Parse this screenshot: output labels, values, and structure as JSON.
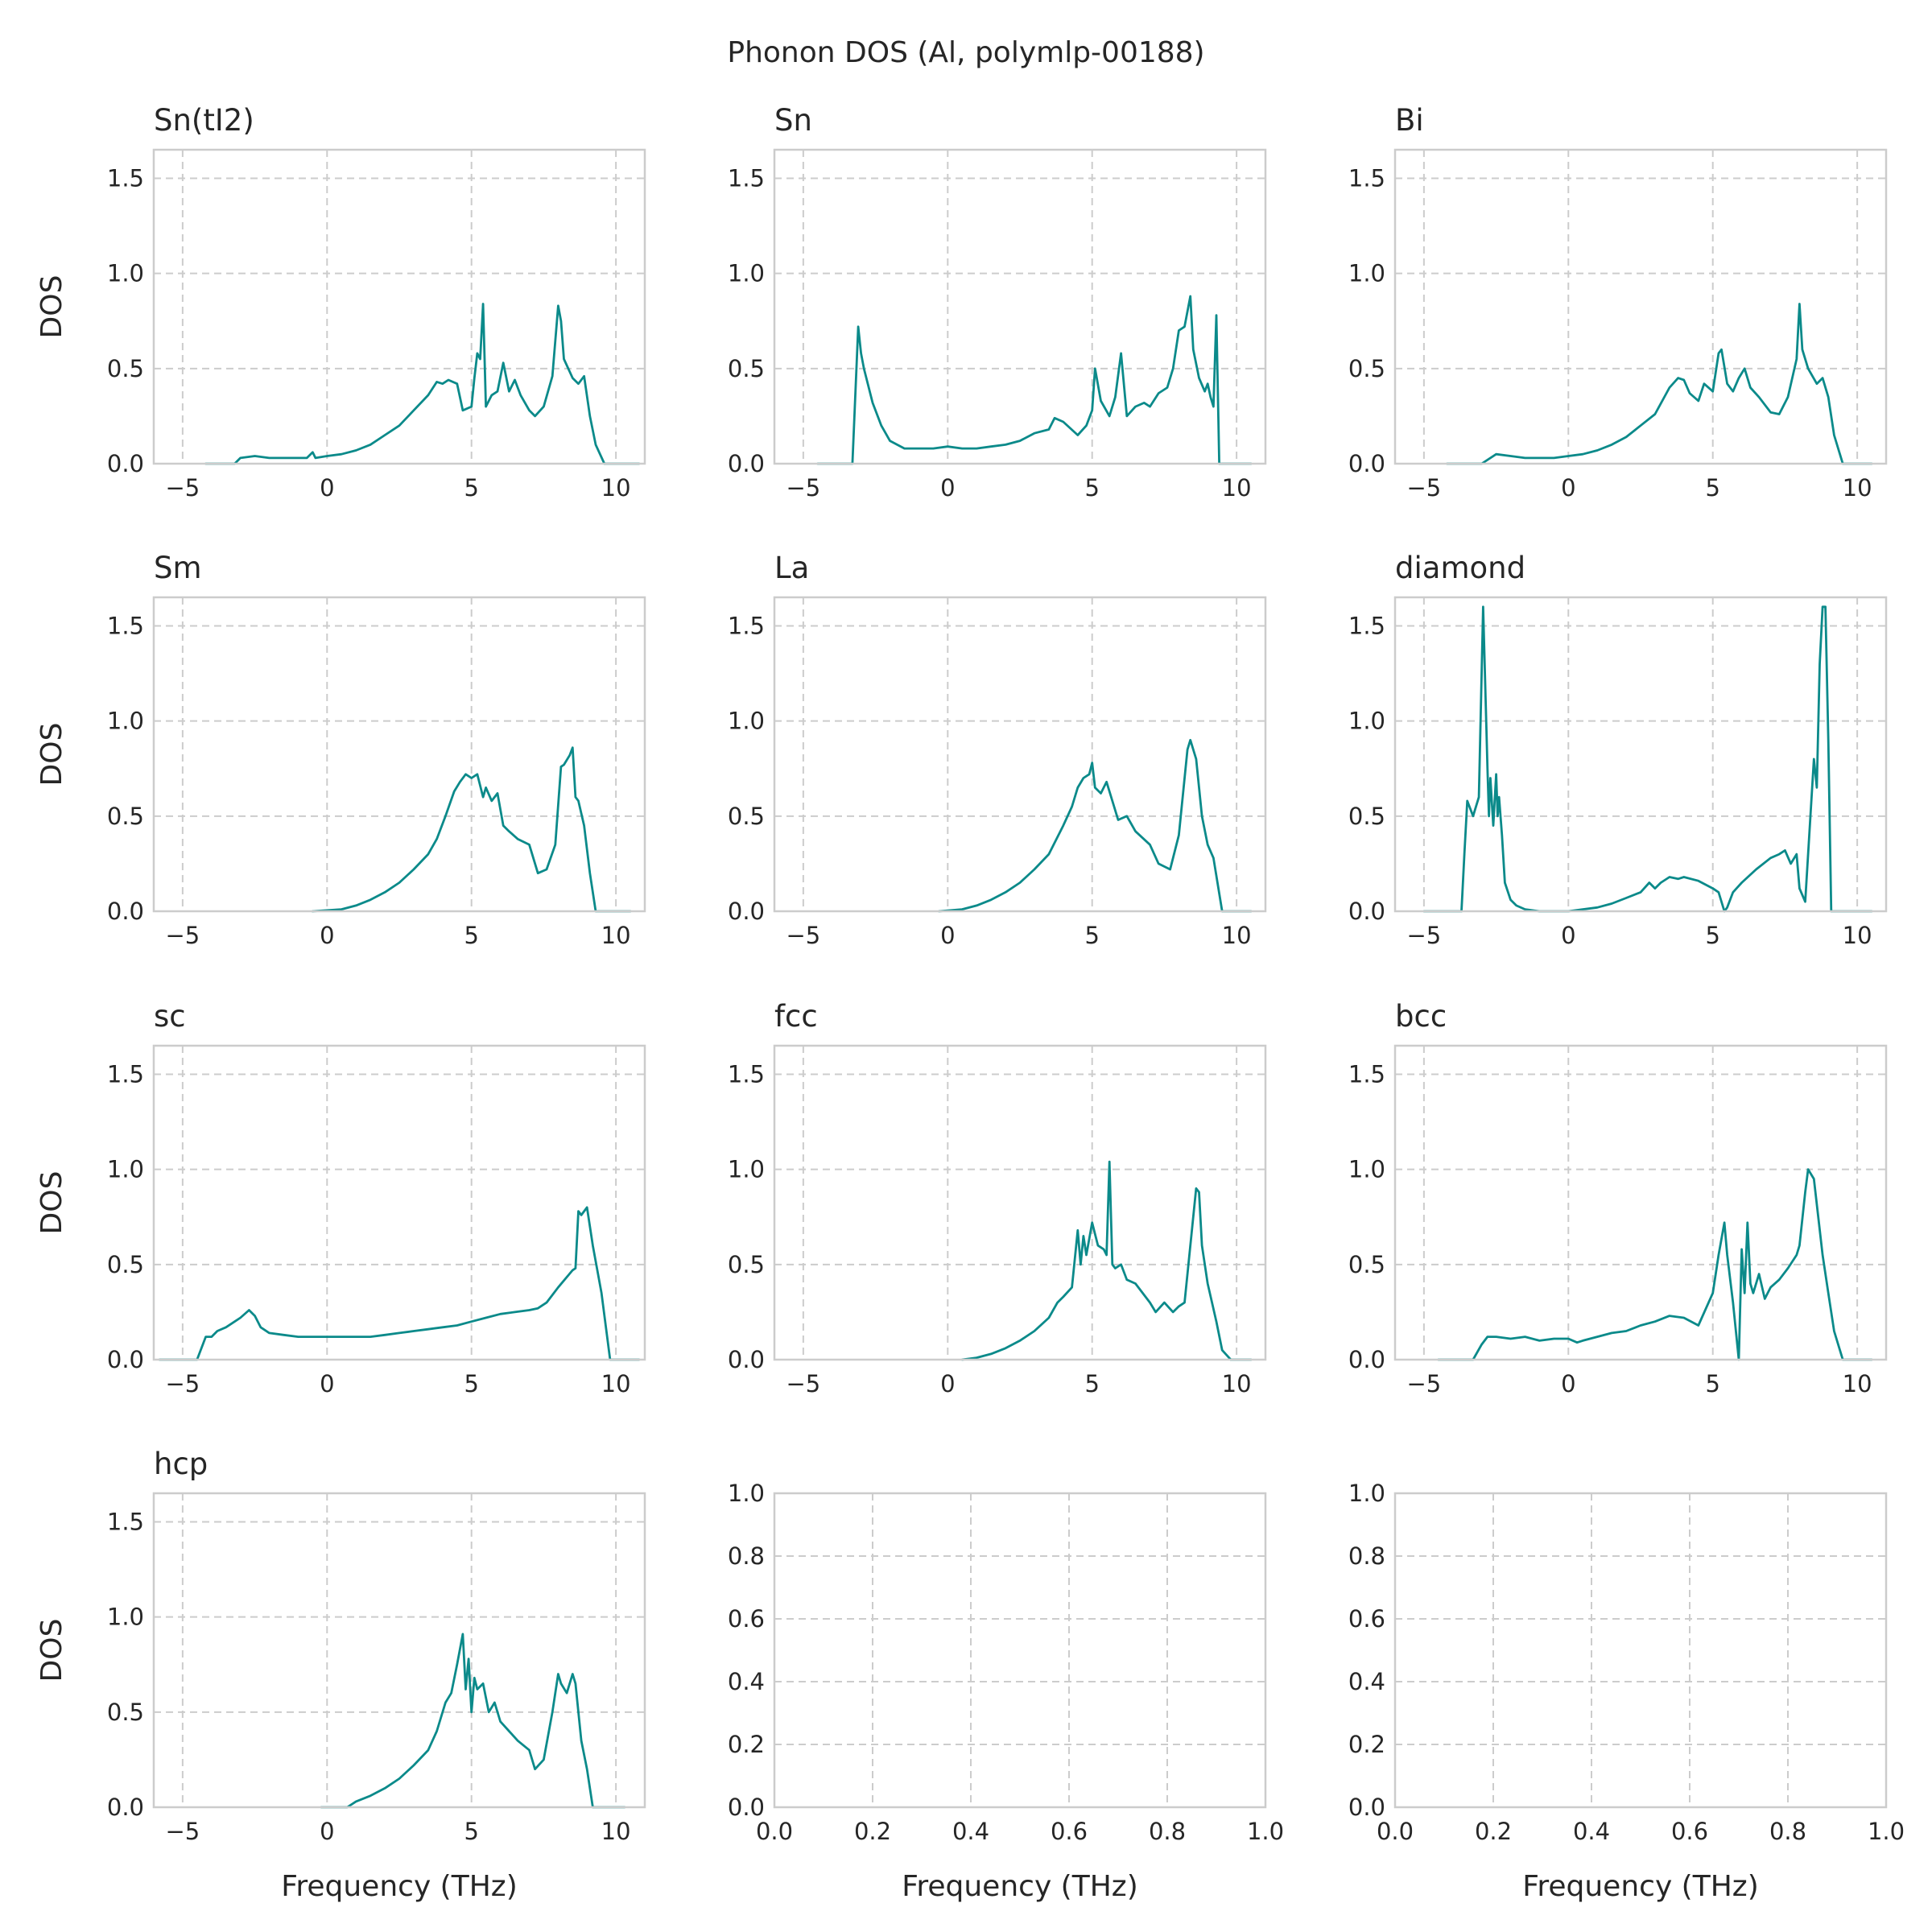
{
  "suptitle": "Phonon DOS (Al, polymlp-00188)",
  "colors": {
    "line": "#0b8a8a",
    "grid": "#cccccc",
    "frame": "#cccccc",
    "text": "#262626"
  },
  "chart_data": [
    {
      "type": "line",
      "title": "Sn(tI2)",
      "xlabel": "",
      "ylabel": "DOS",
      "xlim": [
        -6,
        11
      ],
      "ylim": [
        0,
        1.65
      ],
      "xticks": [
        -5,
        0,
        5,
        10
      ],
      "yticks": [
        0.0,
        0.5,
        1.0,
        1.5
      ],
      "grid": true,
      "x": [
        -4.2,
        -3.2,
        -3.0,
        -2.5,
        -2.0,
        -1.5,
        -0.7,
        -0.5,
        -0.4,
        0,
        0.5,
        1.0,
        1.5,
        2.0,
        2.5,
        3.0,
        3.5,
        3.8,
        4.0,
        4.2,
        4.5,
        4.7,
        5.0,
        5.1,
        5.2,
        5.3,
        5.4,
        5.5,
        5.7,
        5.9,
        6.1,
        6.3,
        6.5,
        6.7,
        7.0,
        7.2,
        7.5,
        7.8,
        8.0,
        8.1,
        8.2,
        8.5,
        8.7,
        8.9,
        9.1,
        9.3,
        9.6,
        10.8
      ],
      "y": [
        0.0,
        0.0,
        0.03,
        0.04,
        0.03,
        0.03,
        0.03,
        0.06,
        0.03,
        0.04,
        0.05,
        0.07,
        0.1,
        0.15,
        0.2,
        0.28,
        0.36,
        0.43,
        0.42,
        0.44,
        0.42,
        0.28,
        0.3,
        0.45,
        0.58,
        0.55,
        0.84,
        0.3,
        0.36,
        0.38,
        0.53,
        0.38,
        0.44,
        0.36,
        0.28,
        0.25,
        0.3,
        0.46,
        0.83,
        0.75,
        0.55,
        0.45,
        0.42,
        0.46,
        0.25,
        0.1,
        0.0,
        0.0
      ],
      "xtick_labels": [
        "−5",
        "0",
        "5",
        "10"
      ],
      "ytick_labels": [
        "0.0",
        "0.5",
        "1.0",
        "1.5"
      ]
    },
    {
      "type": "line",
      "title": "Sn",
      "xlabel": "",
      "ylabel": "",
      "xlim": [
        -6,
        11
      ],
      "ylim": [
        0,
        1.65
      ],
      "xticks": [
        -5,
        0,
        5,
        10
      ],
      "yticks": [
        0.0,
        0.5,
        1.0,
        1.5
      ],
      "grid": true,
      "x": [
        -4.5,
        -3.3,
        -3.1,
        -3.0,
        -2.9,
        -2.6,
        -2.3,
        -2.0,
        -1.5,
        -1.0,
        -0.5,
        0,
        0.5,
        1.0,
        1.5,
        2.0,
        2.5,
        3.0,
        3.5,
        3.7,
        4.0,
        4.5,
        4.8,
        5.0,
        5.1,
        5.3,
        5.6,
        5.8,
        6.0,
        6.2,
        6.5,
        6.8,
        7.0,
        7.3,
        7.6,
        7.8,
        8.0,
        8.2,
        8.4,
        8.5,
        8.7,
        8.9,
        9.0,
        9.1,
        9.2,
        9.3,
        9.4,
        10.5
      ],
      "y": [
        0.0,
        0.0,
        0.72,
        0.58,
        0.5,
        0.32,
        0.2,
        0.12,
        0.08,
        0.08,
        0.08,
        0.09,
        0.08,
        0.08,
        0.09,
        0.1,
        0.12,
        0.16,
        0.18,
        0.24,
        0.22,
        0.15,
        0.2,
        0.28,
        0.5,
        0.33,
        0.25,
        0.35,
        0.58,
        0.25,
        0.3,
        0.32,
        0.3,
        0.37,
        0.4,
        0.5,
        0.7,
        0.72,
        0.88,
        0.6,
        0.45,
        0.38,
        0.42,
        0.35,
        0.3,
        0.78,
        0.0,
        0.0
      ],
      "xtick_labels": [
        "−5",
        "0",
        "5",
        "10"
      ],
      "ytick_labels": [
        "0.0",
        "0.5",
        "1.0",
        "1.5"
      ]
    },
    {
      "type": "line",
      "title": "Bi",
      "xlabel": "",
      "ylabel": "",
      "xlim": [
        -6,
        11
      ],
      "ylim": [
        0,
        1.65
      ],
      "xticks": [
        -5,
        0,
        5,
        10
      ],
      "yticks": [
        0.0,
        0.5,
        1.0,
        1.5
      ],
      "grid": true,
      "x": [
        -4.2,
        -3.0,
        -2.5,
        -2.0,
        -1.5,
        -1.0,
        -0.5,
        0,
        0.5,
        1.0,
        1.5,
        2.0,
        2.5,
        3.0,
        3.5,
        3.8,
        4.0,
        4.2,
        4.5,
        4.7,
        5.0,
        5.2,
        5.3,
        5.5,
        5.7,
        5.9,
        6.1,
        6.3,
        6.6,
        7.0,
        7.3,
        7.6,
        7.9,
        8.0,
        8.1,
        8.3,
        8.6,
        8.8,
        9.0,
        9.2,
        9.5,
        10.5
      ],
      "y": [
        0.0,
        0.0,
        0.05,
        0.04,
        0.03,
        0.03,
        0.03,
        0.04,
        0.05,
        0.07,
        0.1,
        0.14,
        0.2,
        0.26,
        0.4,
        0.45,
        0.44,
        0.37,
        0.33,
        0.42,
        0.38,
        0.58,
        0.6,
        0.42,
        0.38,
        0.45,
        0.5,
        0.4,
        0.35,
        0.27,
        0.26,
        0.35,
        0.55,
        0.84,
        0.6,
        0.5,
        0.42,
        0.45,
        0.35,
        0.15,
        0.0,
        0.0
      ],
      "xtick_labels": [
        "−5",
        "0",
        "5",
        "10"
      ],
      "ytick_labels": [
        "0.0",
        "0.5",
        "1.0",
        "1.5"
      ]
    },
    {
      "type": "line",
      "title": "Sm",
      "xlabel": "",
      "ylabel": "DOS",
      "xlim": [
        -6,
        11
      ],
      "ylim": [
        0,
        1.65
      ],
      "xticks": [
        -5,
        0,
        5,
        10
      ],
      "yticks": [
        0.0,
        0.5,
        1.0,
        1.5
      ],
      "grid": true,
      "x": [
        -0.5,
        0.5,
        1.0,
        1.5,
        2.0,
        2.5,
        3.0,
        3.5,
        3.8,
        4.1,
        4.4,
        4.6,
        4.8,
        5.0,
        5.2,
        5.4,
        5.5,
        5.7,
        5.9,
        6.1,
        6.3,
        6.6,
        7.0,
        7.3,
        7.6,
        7.9,
        8.1,
        8.2,
        8.4,
        8.5,
        8.6,
        8.7,
        8.9,
        9.1,
        9.3,
        10.5
      ],
      "y": [
        0.0,
        0.01,
        0.03,
        0.06,
        0.1,
        0.15,
        0.22,
        0.3,
        0.38,
        0.5,
        0.63,
        0.68,
        0.72,
        0.7,
        0.72,
        0.6,
        0.65,
        0.58,
        0.62,
        0.45,
        0.42,
        0.38,
        0.35,
        0.2,
        0.22,
        0.35,
        0.76,
        0.77,
        0.82,
        0.86,
        0.6,
        0.58,
        0.45,
        0.2,
        0.0,
        0.0
      ],
      "xtick_labels": [
        "−5",
        "0",
        "5",
        "10"
      ],
      "ytick_labels": [
        "0.0",
        "0.5",
        "1.0",
        "1.5"
      ]
    },
    {
      "type": "line",
      "title": "La",
      "xlabel": "",
      "ylabel": "",
      "xlim": [
        -6,
        11
      ],
      "ylim": [
        0,
        1.65
      ],
      "xticks": [
        -5,
        0,
        5,
        10
      ],
      "yticks": [
        0.0,
        0.5,
        1.0,
        1.5
      ],
      "grid": true,
      "x": [
        -0.3,
        0.5,
        1.0,
        1.5,
        2.0,
        2.5,
        3.0,
        3.5,
        4.0,
        4.3,
        4.5,
        4.7,
        4.9,
        5.0,
        5.1,
        5.3,
        5.5,
        5.7,
        5.9,
        6.2,
        6.5,
        7.0,
        7.3,
        7.7,
        8.0,
        8.3,
        8.4,
        8.6,
        8.8,
        9.0,
        9.2,
        9.5,
        10.5
      ],
      "y": [
        0.0,
        0.01,
        0.03,
        0.06,
        0.1,
        0.15,
        0.22,
        0.3,
        0.45,
        0.55,
        0.65,
        0.7,
        0.72,
        0.78,
        0.65,
        0.62,
        0.68,
        0.58,
        0.48,
        0.5,
        0.42,
        0.35,
        0.25,
        0.22,
        0.4,
        0.85,
        0.9,
        0.8,
        0.5,
        0.35,
        0.28,
        0.0,
        0.0
      ],
      "xtick_labels": [
        "−5",
        "0",
        "5",
        "10"
      ],
      "ytick_labels": [
        "0.0",
        "0.5",
        "1.0",
        "1.5"
      ]
    },
    {
      "type": "line",
      "title": "diamond",
      "xlabel": "",
      "ylabel": "",
      "xlim": [
        -6,
        11
      ],
      "ylim": [
        0,
        1.65
      ],
      "xticks": [
        -5,
        0,
        5,
        10
      ],
      "yticks": [
        0.0,
        0.5,
        1.0,
        1.5
      ],
      "grid": true,
      "x": [
        -5.0,
        -3.7,
        -3.6,
        -3.5,
        -3.3,
        -3.1,
        -2.95,
        -2.8,
        -2.75,
        -2.7,
        -2.6,
        -2.5,
        -2.45,
        -2.4,
        -2.3,
        -2.2,
        -2.0,
        -1.8,
        -1.5,
        -1.0,
        -0.5,
        0,
        0.5,
        1.0,
        1.5,
        2.0,
        2.5,
        2.8,
        3.0,
        3.2,
        3.5,
        3.8,
        4.0,
        4.5,
        5.0,
        5.2,
        5.4,
        5.5,
        5.7,
        6.0,
        6.5,
        7.0,
        7.3,
        7.5,
        7.7,
        7.9,
        8.0,
        8.2,
        8.5,
        8.6,
        8.7,
        8.8,
        8.9,
        9.0,
        9.1,
        9.5,
        10.5
      ],
      "y": [
        0.0,
        0.0,
        0.3,
        0.58,
        0.5,
        0.6,
        1.6,
        0.75,
        0.5,
        0.7,
        0.45,
        0.72,
        0.5,
        0.6,
        0.4,
        0.15,
        0.06,
        0.03,
        0.01,
        0.0,
        0.0,
        0.0,
        0.01,
        0.02,
        0.04,
        0.07,
        0.1,
        0.15,
        0.12,
        0.15,
        0.18,
        0.17,
        0.18,
        0.16,
        0.12,
        0.1,
        0.0,
        0.02,
        0.1,
        0.15,
        0.22,
        0.28,
        0.3,
        0.32,
        0.25,
        0.3,
        0.12,
        0.05,
        0.8,
        0.65,
        1.3,
        1.6,
        1.6,
        0.9,
        0.0,
        0.0,
        0.0
      ],
      "xtick_labels": [
        "−5",
        "0",
        "5",
        "10"
      ],
      "ytick_labels": [
        "0.0",
        "0.5",
        "1.0",
        "1.5"
      ]
    },
    {
      "type": "line",
      "title": "sc",
      "xlabel": "",
      "ylabel": "DOS",
      "xlim": [
        -6,
        11
      ],
      "ylim": [
        0,
        1.65
      ],
      "xticks": [
        -5,
        0,
        5,
        10
      ],
      "yticks": [
        0.0,
        0.5,
        1.0,
        1.5
      ],
      "grid": true,
      "x": [
        -5.8,
        -4.5,
        -4.2,
        -4.0,
        -3.8,
        -3.5,
        -3.2,
        -3.0,
        -2.7,
        -2.5,
        -2.3,
        -2.0,
        -1.5,
        -1.0,
        -0.5,
        0,
        0.5,
        1.0,
        1.5,
        2.0,
        2.5,
        3.0,
        3.5,
        4.0,
        4.5,
        5.0,
        5.5,
        6.0,
        6.5,
        7.0,
        7.3,
        7.6,
        8.0,
        8.5,
        8.6,
        8.7,
        8.8,
        9.0,
        9.2,
        9.5,
        9.8,
        10.8
      ],
      "y": [
        0.0,
        0.0,
        0.12,
        0.12,
        0.15,
        0.17,
        0.2,
        0.22,
        0.26,
        0.23,
        0.17,
        0.14,
        0.13,
        0.12,
        0.12,
        0.12,
        0.12,
        0.12,
        0.12,
        0.13,
        0.14,
        0.15,
        0.16,
        0.17,
        0.18,
        0.2,
        0.22,
        0.24,
        0.25,
        0.26,
        0.27,
        0.3,
        0.38,
        0.47,
        0.48,
        0.78,
        0.76,
        0.8,
        0.6,
        0.35,
        0.0,
        0.0
      ],
      "xtick_labels": [
        "−5",
        "0",
        "5",
        "10"
      ],
      "ytick_labels": [
        "0.0",
        "0.5",
        "1.0",
        "1.5"
      ]
    },
    {
      "type": "line",
      "title": "fcc",
      "xlabel": "",
      "ylabel": "",
      "xlim": [
        -6,
        11
      ],
      "ylim": [
        0,
        1.65
      ],
      "xticks": [
        -5,
        0,
        5,
        10
      ],
      "yticks": [
        0.0,
        0.5,
        1.0,
        1.5
      ],
      "grid": true,
      "x": [
        0.5,
        1.0,
        1.5,
        2.0,
        2.5,
        3.0,
        3.5,
        3.8,
        4.0,
        4.3,
        4.5,
        4.6,
        4.7,
        4.8,
        5.0,
        5.2,
        5.4,
        5.5,
        5.6,
        5.7,
        5.8,
        6.0,
        6.2,
        6.5,
        7.0,
        7.2,
        7.5,
        7.8,
        8.0,
        8.2,
        8.5,
        8.6,
        8.7,
        8.8,
        9.0,
        9.3,
        9.5,
        9.8,
        10.5
      ],
      "y": [
        0.0,
        0.01,
        0.03,
        0.06,
        0.1,
        0.15,
        0.22,
        0.3,
        0.33,
        0.38,
        0.68,
        0.5,
        0.65,
        0.55,
        0.72,
        0.6,
        0.58,
        0.55,
        1.04,
        0.5,
        0.48,
        0.5,
        0.42,
        0.4,
        0.3,
        0.25,
        0.3,
        0.25,
        0.28,
        0.3,
        0.75,
        0.9,
        0.88,
        0.6,
        0.4,
        0.2,
        0.05,
        0.0,
        0.0
      ],
      "xtick_labels": [
        "−5",
        "0",
        "5",
        "10"
      ],
      "ytick_labels": [
        "0.0",
        "0.5",
        "1.0",
        "1.5"
      ]
    },
    {
      "type": "line",
      "title": "bcc",
      "xlabel": "",
      "ylabel": "",
      "xlim": [
        -6,
        11
      ],
      "ylim": [
        0,
        1.65
      ],
      "xticks": [
        -5,
        0,
        5,
        10
      ],
      "yticks": [
        0.0,
        0.5,
        1.0,
        1.5
      ],
      "grid": true,
      "x": [
        -4.5,
        -3.3,
        -3.0,
        -2.8,
        -2.5,
        -2.0,
        -1.5,
        -1.0,
        -0.5,
        0,
        0.3,
        0.5,
        1.0,
        1.5,
        2.0,
        2.5,
        3.0,
        3.5,
        4.0,
        4.5,
        5.0,
        5.2,
        5.4,
        5.5,
        5.7,
        5.9,
        6.0,
        6.1,
        6.2,
        6.3,
        6.4,
        6.6,
        6.8,
        7.0,
        7.3,
        7.6,
        7.9,
        8.0,
        8.2,
        8.3,
        8.5,
        8.8,
        9.0,
        9.2,
        9.5,
        10.5
      ],
      "y": [
        0.0,
        0.0,
        0.08,
        0.12,
        0.12,
        0.11,
        0.12,
        0.1,
        0.11,
        0.11,
        0.09,
        0.1,
        0.12,
        0.14,
        0.15,
        0.18,
        0.2,
        0.23,
        0.22,
        0.18,
        0.35,
        0.55,
        0.72,
        0.55,
        0.3,
        0.0,
        0.58,
        0.35,
        0.72,
        0.4,
        0.35,
        0.45,
        0.32,
        0.38,
        0.42,
        0.48,
        0.55,
        0.6,
        0.88,
        1.0,
        0.95,
        0.55,
        0.35,
        0.15,
        0.0,
        0.0
      ],
      "xtick_labels": [
        "−5",
        "0",
        "5",
        "10"
      ],
      "ytick_labels": [
        "0.0",
        "0.5",
        "1.0",
        "1.5"
      ]
    },
    {
      "type": "line",
      "title": "hcp",
      "xlabel": "Frequency (THz)",
      "ylabel": "DOS",
      "xlim": [
        -6,
        11
      ],
      "ylim": [
        0,
        1.65
      ],
      "xticks": [
        -5,
        0,
        5,
        10
      ],
      "yticks": [
        0.0,
        0.5,
        1.0,
        1.5
      ],
      "grid": true,
      "x": [
        -0.2,
        0.7,
        1.0,
        1.5,
        2.0,
        2.5,
        3.0,
        3.5,
        3.8,
        4.1,
        4.3,
        4.5,
        4.7,
        4.8,
        4.9,
        5.0,
        5.1,
        5.2,
        5.4,
        5.6,
        5.8,
        6.0,
        6.3,
        6.6,
        7.0,
        7.2,
        7.5,
        7.8,
        8.0,
        8.1,
        8.3,
        8.5,
        8.6,
        8.8,
        9.0,
        9.2,
        9.5,
        10.3
      ],
      "y": [
        0.0,
        0.0,
        0.03,
        0.06,
        0.1,
        0.15,
        0.22,
        0.3,
        0.4,
        0.55,
        0.6,
        0.75,
        0.91,
        0.62,
        0.78,
        0.5,
        0.68,
        0.62,
        0.65,
        0.5,
        0.55,
        0.45,
        0.4,
        0.35,
        0.3,
        0.2,
        0.25,
        0.5,
        0.7,
        0.65,
        0.6,
        0.7,
        0.65,
        0.35,
        0.2,
        0.0,
        0.0,
        0.0
      ],
      "xtick_labels": [
        "−5",
        "0",
        "5",
        "10"
      ],
      "ytick_labels": [
        "0.0",
        "0.5",
        "1.0",
        "1.5"
      ]
    },
    {
      "type": "line",
      "title": "",
      "xlabel": "Frequency (THz)",
      "ylabel": "",
      "xlim": [
        0,
        1
      ],
      "ylim": [
        0,
        1
      ],
      "xticks": [
        0.0,
        0.2,
        0.4,
        0.6,
        0.8,
        1.0
      ],
      "yticks": [
        0.0,
        0.2,
        0.4,
        0.6,
        0.8,
        1.0
      ],
      "grid": true,
      "x": [],
      "y": [],
      "xtick_labels": [
        "0.0",
        "0.2",
        "0.4",
        "0.6",
        "0.8",
        "1.0"
      ],
      "ytick_labels": [
        "0.0",
        "0.2",
        "0.4",
        "0.6",
        "0.8",
        "1.0"
      ]
    },
    {
      "type": "line",
      "title": "",
      "xlabel": "Frequency (THz)",
      "ylabel": "",
      "xlim": [
        0,
        1
      ],
      "ylim": [
        0,
        1
      ],
      "xticks": [
        0.0,
        0.2,
        0.4,
        0.6,
        0.8,
        1.0
      ],
      "yticks": [
        0.0,
        0.2,
        0.4,
        0.6,
        0.8,
        1.0
      ],
      "grid": true,
      "x": [],
      "y": [],
      "xtick_labels": [
        "0.0",
        "0.2",
        "0.4",
        "0.6",
        "0.8",
        "1.0"
      ],
      "ytick_labels": [
        "0.0",
        "0.2",
        "0.4",
        "0.6",
        "0.8",
        "1.0"
      ]
    }
  ]
}
